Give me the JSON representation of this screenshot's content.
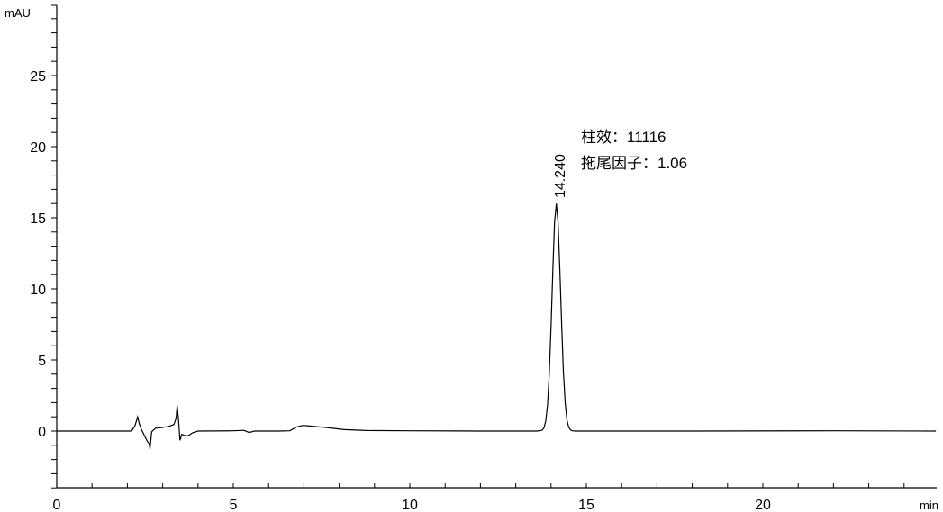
{
  "chart_data": {
    "type": "line",
    "title": "",
    "xlabel": "min",
    "ylabel": "mAU",
    "xlim": [
      0,
      24.9
    ],
    "ylim": [
      -4,
      30
    ],
    "x_major_ticks": [
      0,
      5,
      10,
      15,
      20
    ],
    "x_tick_labels": [
      "0",
      "5",
      "10",
      "15",
      "20"
    ],
    "x_minor_step": 1,
    "y_major_ticks": [
      0,
      5,
      10,
      15,
      20,
      25
    ],
    "y_tick_labels": [
      "0",
      "5",
      "10",
      "15",
      "20",
      "25"
    ],
    "y_minor_step": 1,
    "grid": false,
    "line_color": "#000000",
    "series": [
      {
        "points": [
          [
            0,
            0
          ],
          [
            2.12,
            0
          ],
          [
            2.22,
            0.4
          ],
          [
            2.29,
            1.0
          ],
          [
            2.34,
            0.5
          ],
          [
            2.39,
            0.15
          ],
          [
            2.48,
            -0.3
          ],
          [
            2.56,
            -0.7
          ],
          [
            2.62,
            -0.9
          ],
          [
            2.64,
            -1.27
          ],
          [
            2.69,
            -0.05
          ],
          [
            2.73,
            0.05
          ],
          [
            2.8,
            0.2
          ],
          [
            2.98,
            0.25
          ],
          [
            3.1,
            0.3
          ],
          [
            3.2,
            0.35
          ],
          [
            3.32,
            0.46
          ],
          [
            3.38,
            0.9
          ],
          [
            3.41,
            1.79
          ],
          [
            3.45,
            0.78
          ],
          [
            3.49,
            -0.65
          ],
          [
            3.54,
            -0.23
          ],
          [
            3.6,
            -0.3
          ],
          [
            3.71,
            -0.34
          ],
          [
            3.85,
            -0.12
          ],
          [
            4.0,
            0
          ],
          [
            5.0,
            0.02
          ],
          [
            5.3,
            0.05
          ],
          [
            5.45,
            -0.1
          ],
          [
            5.6,
            0
          ],
          [
            6.3,
            0
          ],
          [
            6.6,
            0.02
          ],
          [
            6.8,
            0.3
          ],
          [
            6.98,
            0.4
          ],
          [
            7.2,
            0.35
          ],
          [
            7.65,
            0.25
          ],
          [
            8.15,
            0.1
          ],
          [
            8.77,
            0.04
          ],
          [
            10.0,
            0.02
          ],
          [
            12.0,
            0
          ],
          [
            13.6,
            0
          ],
          [
            13.75,
            0.06
          ],
          [
            13.8,
            0.23
          ],
          [
            13.85,
            0.7
          ],
          [
            13.9,
            1.82
          ],
          [
            13.95,
            3.99
          ],
          [
            14.0,
            7.33
          ],
          [
            14.05,
            11.31
          ],
          [
            14.1,
            14.67
          ],
          [
            14.15,
            16.0
          ],
          [
            14.2,
            14.67
          ],
          [
            14.25,
            11.31
          ],
          [
            14.3,
            7.5
          ],
          [
            14.35,
            4.2
          ],
          [
            14.4,
            2.0
          ],
          [
            14.45,
            0.8
          ],
          [
            14.5,
            0.28
          ],
          [
            14.55,
            0.08
          ],
          [
            14.6,
            0.02
          ],
          [
            14.7,
            0
          ],
          [
            18.0,
            0
          ],
          [
            22.0,
            0.02
          ],
          [
            24.9,
            0
          ]
        ]
      }
    ],
    "peak_labels": [
      {
        "time": 14.24,
        "label": "14.240"
      }
    ],
    "annotations": [
      {
        "text": "柱效：11116"
      },
      {
        "text": "拖尾因子：1.06"
      }
    ]
  }
}
